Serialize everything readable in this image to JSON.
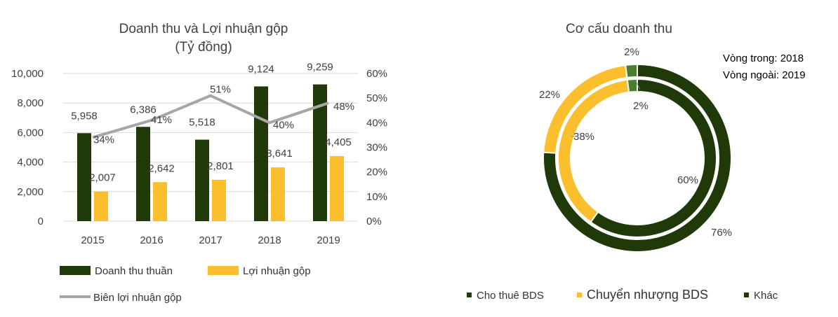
{
  "colors": {
    "dark_green": "#1f3a08",
    "yellow": "#fbbf2d",
    "gray_line": "#a6a6a6",
    "light_green": "#4a7d2c"
  },
  "chart_data": [
    {
      "type": "bar",
      "title": "Doanh thu và Lợi nhuận gộp",
      "subtitle": "(Tỷ đồng)",
      "categories": [
        "2015",
        "2016",
        "2017",
        "2018",
        "2019"
      ],
      "series": [
        {
          "name": "Doanh thu thuần",
          "type": "bar",
          "axis": "left",
          "values": [
            5958,
            6386,
            5518,
            9124,
            9259
          ],
          "labels": [
            "5,958",
            "6,386",
            "5,518",
            "9,124",
            "9,259"
          ]
        },
        {
          "name": "Lợi nhuận gộp",
          "type": "bar",
          "axis": "left",
          "values": [
            2007,
            2642,
            2801,
            3641,
            4405
          ],
          "labels": [
            "2,007",
            "2,642",
            "2,801",
            "3,641",
            "4,405"
          ]
        },
        {
          "name": "Biên lợi nhuận gộp",
          "type": "line",
          "axis": "right",
          "values": [
            34,
            41,
            51,
            40,
            48
          ],
          "labels": [
            "34%",
            "41%",
            "51%",
            "40%",
            "48%"
          ]
        }
      ],
      "ylim": [
        0,
        10000
      ],
      "yticks": [
        0,
        2000,
        4000,
        6000,
        8000,
        10000
      ],
      "ytick_labels": [
        "0",
        "2,000",
        "4,000",
        "6,000",
        "8,000",
        "10,000"
      ],
      "y2lim": [
        0,
        60
      ],
      "y2ticks": [
        0,
        10,
        20,
        30,
        40,
        50,
        60
      ],
      "y2tick_labels": [
        "0%",
        "10%",
        "20%",
        "30%",
        "40%",
        "50%",
        "60%"
      ],
      "grid": true,
      "legend": "bottom"
    },
    {
      "type": "pie",
      "title": "Cơ cấu doanh thu",
      "annotation_lines": [
        "Vòng trong: 2018",
        "Vòng ngoài: 2019"
      ],
      "categories": [
        "Cho thuê BDS",
        "Chuyển nhượng BDS",
        "Khác"
      ],
      "rings": [
        {
          "name": "Vòng trong: 2018",
          "values": [
            60,
            38,
            2
          ],
          "labels": [
            "60%",
            "38%",
            "2%"
          ]
        },
        {
          "name": "Vòng ngoài: 2019",
          "values": [
            76,
            22,
            2
          ],
          "labels": [
            "76%",
            "22%",
            "2%"
          ]
        }
      ],
      "legend": "bottom"
    }
  ]
}
